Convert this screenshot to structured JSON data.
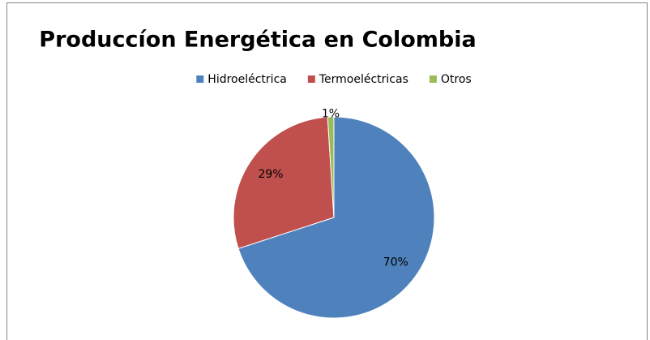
{
  "chart_data": {
    "type": "pie",
    "title": "Produccíon Energética en Colombia",
    "categories": [
      "Hidroeléctrica",
      "Termoeléctricas",
      "Otros"
    ],
    "values": [
      70,
      29,
      1
    ],
    "value_labels": [
      "70%",
      "29%",
      "1%"
    ],
    "colors": [
      "#4f81bd",
      "#c0504d",
      "#9bbb59"
    ],
    "legend": "top"
  }
}
